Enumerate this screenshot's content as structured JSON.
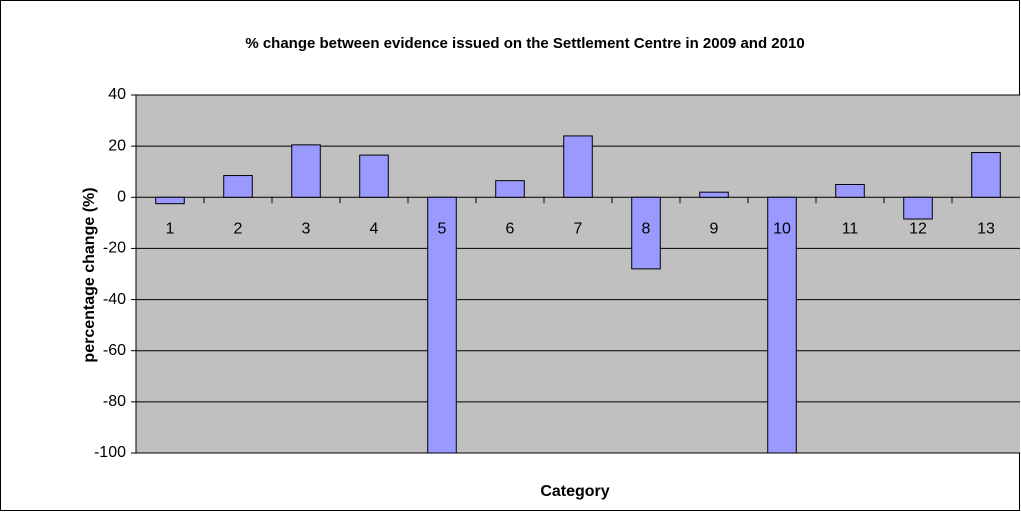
{
  "chart_data": {
    "type": "bar",
    "title": "% change between evidence issued on the Settlement Centre in 2009 and 2010",
    "x_label": "Category",
    "y_label": "percentage change (%)",
    "categories": [
      "1",
      "2",
      "3",
      "4",
      "5",
      "6",
      "7",
      "8",
      "9",
      "10",
      "11",
      "12",
      "13"
    ],
    "values": [
      -2.5,
      8.5,
      20.5,
      16.5,
      -100,
      6.5,
      24,
      -28,
      2,
      -100,
      5,
      -8.5,
      17.5
    ],
    "color": "#9999ff",
    "ylim": [
      -100,
      40
    ],
    "yticks": [
      -100,
      -80,
      -60,
      -40,
      -20,
      0,
      20,
      40
    ],
    "grid": true
  }
}
